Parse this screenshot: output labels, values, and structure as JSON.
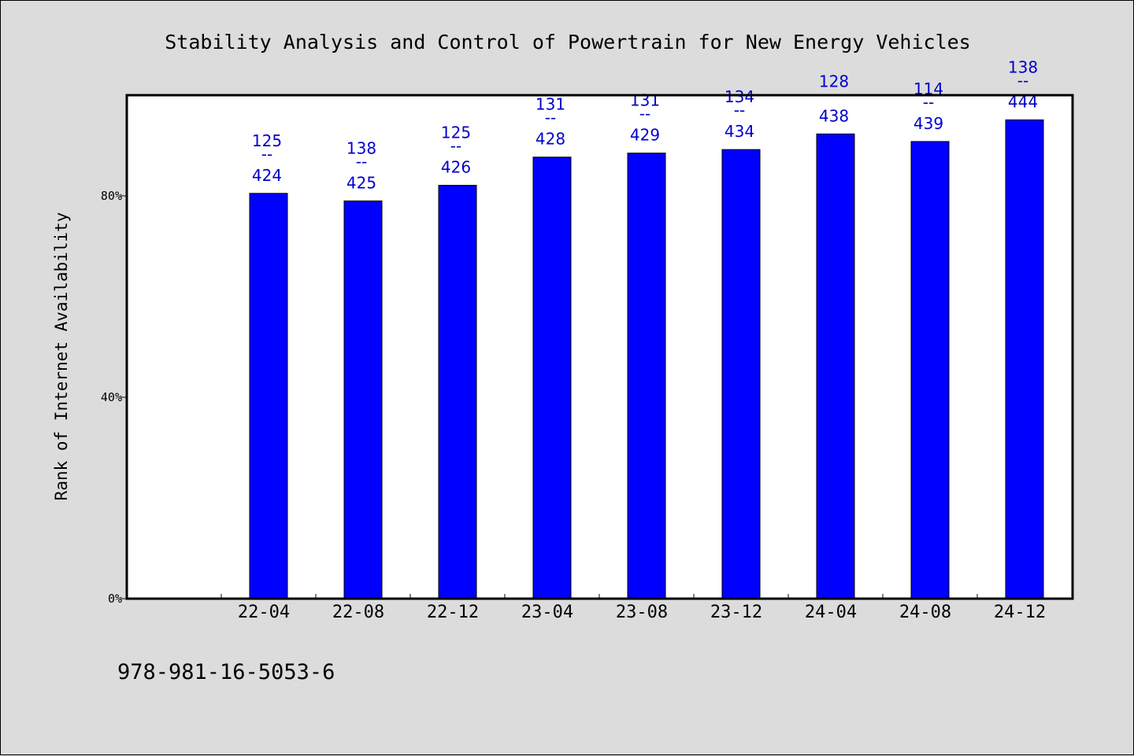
{
  "chart_data": {
    "type": "bar",
    "title": "Stability Analysis and Control of Powertrain for New Energy Vehicles",
    "ylabel": "Rank of Internet Availability",
    "xlabel": "",
    "ylim": [
      0,
      100
    ],
    "y_ticks": [
      {
        "value": 0,
        "label": "0%"
      },
      {
        "value": 40,
        "label": "40%"
      },
      {
        "value": 80,
        "label": "80%"
      }
    ],
    "categories": [
      "22-04",
      "22-08",
      "22-12",
      "23-04",
      "23-08",
      "23-12",
      "24-04",
      "24-08",
      "24-12"
    ],
    "values": [
      80.5,
      79.0,
      82.1,
      87.7,
      88.5,
      89.2,
      92.3,
      90.8,
      95.1
    ],
    "data_labels": [
      {
        "top": "125",
        "sep": "--",
        "bottom": "424"
      },
      {
        "top": "138",
        "sep": "--",
        "bottom": "425"
      },
      {
        "top": "125",
        "sep": "--",
        "bottom": "426"
      },
      {
        "top": "131",
        "sep": "--",
        "bottom": "428"
      },
      {
        "top": "131",
        "sep": "--",
        "bottom": "429"
      },
      {
        "top": "134",
        "sep": "--",
        "bottom": "434"
      },
      {
        "top": "128",
        "sep": "--",
        "bottom": "438"
      },
      {
        "top": "114",
        "sep": "--",
        "bottom": "439"
      },
      {
        "top": "138",
        "sep": "--",
        "bottom": "444"
      }
    ],
    "legend": "none",
    "grid": false,
    "colors": {
      "bar": "#0000ff",
      "bar_border": "#000000",
      "data_label": "#0000cc",
      "plot_background": "#ffffff",
      "page_background": "#dcdcdc"
    }
  },
  "footer": {
    "isbn": "978-981-16-5053-6"
  }
}
